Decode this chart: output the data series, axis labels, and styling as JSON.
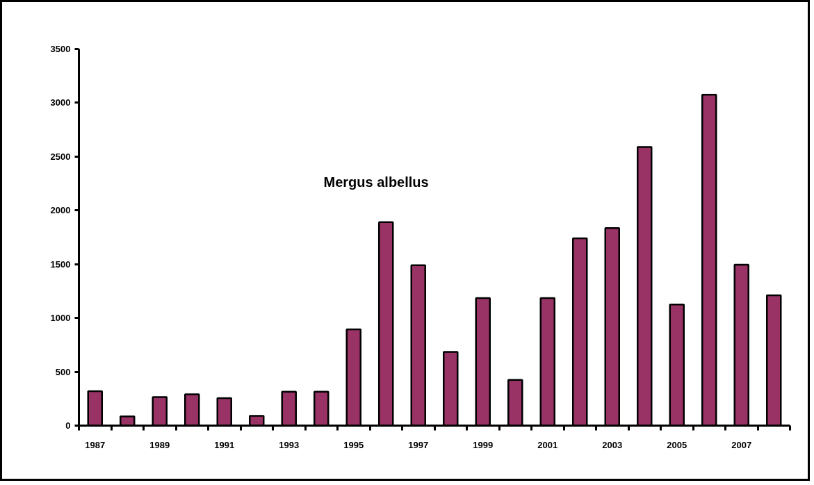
{
  "chart_data": {
    "type": "bar",
    "title": "Mergus albellus",
    "categories": [
      "1987",
      null,
      "1989",
      null,
      "1991",
      null,
      "1993",
      null,
      "1995",
      null,
      "1997",
      null,
      "1999",
      null,
      "2001",
      null,
      "2003",
      null,
      "2005",
      null,
      "2007",
      null
    ],
    "values": [
      320,
      85,
      265,
      290,
      255,
      90,
      315,
      315,
      895,
      1890,
      1490,
      685,
      1185,
      425,
      1185,
      1740,
      1835,
      2590,
      1125,
      3075,
      1495,
      1210
    ],
    "color": "#993366",
    "ylim": [
      0,
      3500
    ],
    "yticks": [
      0,
      500,
      1000,
      1500,
      2000,
      2500,
      3000,
      3500
    ]
  }
}
